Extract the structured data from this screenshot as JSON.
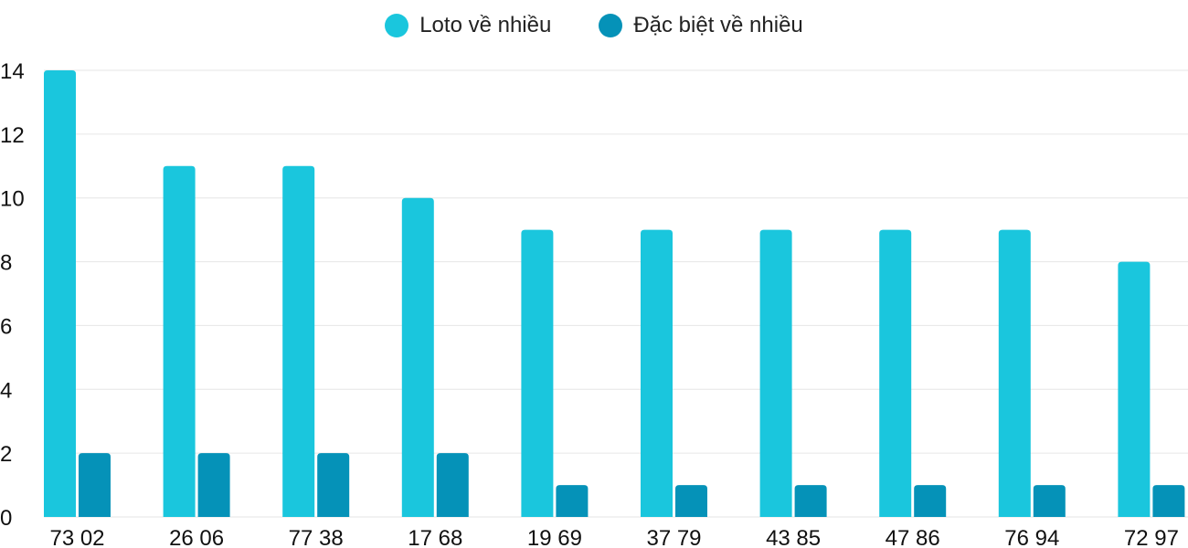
{
  "chart_data": {
    "type": "bar",
    "categories": [
      "73 02",
      "26 06",
      "77 38",
      "17 68",
      "19 69",
      "37 79",
      "43 85",
      "47 86",
      "76 94",
      "72 97"
    ],
    "series": [
      {
        "name": "Loto về nhiều",
        "color": "#1ac6dd",
        "values": [
          14,
          11,
          11,
          10,
          9,
          9,
          9,
          9,
          9,
          8
        ]
      },
      {
        "name": "Đặc biệt về nhiều",
        "color": "#0592b8",
        "values": [
          2,
          2,
          2,
          2,
          1,
          1,
          1,
          1,
          1,
          1
        ]
      }
    ],
    "yticks": [
      "0",
      "2",
      "4",
      "6",
      "8",
      "10",
      "12",
      "14"
    ],
    "ylim": [
      0,
      14
    ],
    "grid": true,
    "legend": "top-center"
  }
}
